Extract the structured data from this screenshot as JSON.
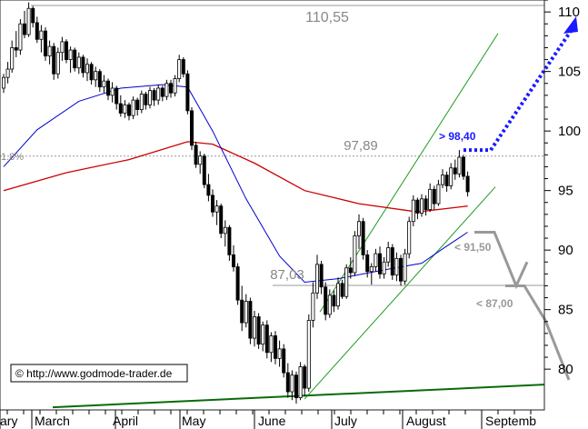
{
  "chart_data": {
    "type": "candlestick",
    "title": "",
    "xlabel": "",
    "ylabel": "",
    "months": [
      "ary",
      "March",
      "April",
      "May",
      "June",
      "July",
      "August",
      "Septemb"
    ],
    "y_ticks": [
      "110",
      "105",
      "100",
      "95",
      "90",
      "85",
      "80"
    ],
    "ylim": [
      76.5,
      110.8
    ],
    "price_labels": {
      "high": "110,55",
      "mid_high": "97,89",
      "support": "87,03",
      "fib_pct": "1.8%"
    },
    "target_labels": {
      "up_target": "> 98,40",
      "down_1": "< 91,50",
      "down_2": "< 87,00"
    },
    "copyright": "© http://www.godmode-trader.de",
    "series": [
      {
        "name": "",
        "color": "#cc0000",
        "kind": "moving-average-long"
      },
      {
        "name": "",
        "color": "#0000cc",
        "kind": "moving-average-short"
      }
    ],
    "candles": [
      [
        103.6,
        104.8,
        103.2,
        104.5
      ],
      [
        104.5,
        105.8,
        104.0,
        105.2
      ],
      [
        105.2,
        107.6,
        104.9,
        107.0
      ],
      [
        107.0,
        108.4,
        106.2,
        106.8
      ],
      [
        106.8,
        109.4,
        106.4,
        109.0
      ],
      [
        109.0,
        110.1,
        107.8,
        108.1
      ],
      [
        108.1,
        110.8,
        107.9,
        110.3
      ],
      [
        110.3,
        110.5,
        108.7,
        109.1
      ],
      [
        109.1,
        109.6,
        107.4,
        107.7
      ],
      [
        107.7,
        108.9,
        106.6,
        108.4
      ],
      [
        108.4,
        108.7,
        105.9,
        106.3
      ],
      [
        106.3,
        107.6,
        105.6,
        107.1
      ],
      [
        107.1,
        107.4,
        104.3,
        104.8
      ],
      [
        104.8,
        107.0,
        104.4,
        106.6
      ],
      [
        106.6,
        107.9,
        105.9,
        107.5
      ],
      [
        107.5,
        107.7,
        105.7,
        106.0
      ],
      [
        106.0,
        107.1,
        104.9,
        106.8
      ],
      [
        106.8,
        107.0,
        105.0,
        105.3
      ],
      [
        105.3,
        106.6,
        104.8,
        106.2
      ],
      [
        106.2,
        106.4,
        104.5,
        104.9
      ],
      [
        104.9,
        106.1,
        104.2,
        105.6
      ],
      [
        105.6,
        105.8,
        103.9,
        104.3
      ],
      [
        104.3,
        105.4,
        103.7,
        105.0
      ],
      [
        105.0,
        105.2,
        103.3,
        103.7
      ],
      [
        103.7,
        104.7,
        103.2,
        104.2
      ],
      [
        104.2,
        104.4,
        102.6,
        103.0
      ],
      [
        103.0,
        104.1,
        102.4,
        103.6
      ],
      [
        103.6,
        103.8,
        101.8,
        102.3
      ],
      [
        102.3,
        103.0,
        101.2,
        101.5
      ],
      [
        101.5,
        102.6,
        101.1,
        102.2
      ],
      [
        102.2,
        102.4,
        100.9,
        101.3
      ],
      [
        101.3,
        102.9,
        101.0,
        102.6
      ],
      [
        102.6,
        102.8,
        101.3,
        101.8
      ],
      [
        101.8,
        103.4,
        101.5,
        103.1
      ],
      [
        103.1,
        103.3,
        101.8,
        102.2
      ],
      [
        102.2,
        103.7,
        101.9,
        103.4
      ],
      [
        103.4,
        103.6,
        102.1,
        102.6
      ],
      [
        102.6,
        103.9,
        102.2,
        103.6
      ],
      [
        103.6,
        103.8,
        102.5,
        102.9
      ],
      [
        102.9,
        104.3,
        102.6,
        104.0
      ],
      [
        104.0,
        104.3,
        102.8,
        103.2
      ],
      [
        103.2,
        104.7,
        102.9,
        104.4
      ],
      [
        104.4,
        106.4,
        104.1,
        106.0
      ],
      [
        106.0,
        106.2,
        104.5,
        104.8
      ],
      [
        104.8,
        105.1,
        101.4,
        101.7
      ],
      [
        101.7,
        102.0,
        98.4,
        98.8
      ],
      [
        98.8,
        99.1,
        96.9,
        97.2
      ],
      [
        97.2,
        98.3,
        96.4,
        97.9
      ],
      [
        97.9,
        98.1,
        95.2,
        95.5
      ],
      [
        95.5,
        96.4,
        94.1,
        94.6
      ],
      [
        94.6,
        95.1,
        92.8,
        93.2
      ],
      [
        93.2,
        94.2,
        92.1,
        93.7
      ],
      [
        93.7,
        93.9,
        91.0,
        91.4
      ],
      [
        91.4,
        92.5,
        90.3,
        91.9
      ],
      [
        91.9,
        92.1,
        89.1,
        89.6
      ],
      [
        89.6,
        90.4,
        88.2,
        88.6
      ],
      [
        88.6,
        88.9,
        85.4,
        85.8
      ],
      [
        85.8,
        87.0,
        83.2,
        83.9
      ],
      [
        83.9,
        86.3,
        83.5,
        85.7
      ],
      [
        85.7,
        86.0,
        82.1,
        82.6
      ],
      [
        82.6,
        84.9,
        81.9,
        84.4
      ],
      [
        84.4,
        84.7,
        81.7,
        82.1
      ],
      [
        82.1,
        84.0,
        81.5,
        83.7
      ],
      [
        83.7,
        84.1,
        80.9,
        81.4
      ],
      [
        81.4,
        83.1,
        80.6,
        82.8
      ],
      [
        82.8,
        83.2,
        80.4,
        80.9
      ],
      [
        80.9,
        82.4,
        80.2,
        81.7
      ],
      [
        81.7,
        82.1,
        79.3,
        79.7
      ],
      [
        79.7,
        80.5,
        77.6,
        78.1
      ],
      [
        78.1,
        79.9,
        77.4,
        79.5
      ],
      [
        79.5,
        79.8,
        77.1,
        77.6
      ],
      [
        77.6,
        80.6,
        77.4,
        80.2
      ],
      [
        80.2,
        80.4,
        77.7,
        78.4
      ],
      [
        78.4,
        84.6,
        78.1,
        84.1
      ],
      [
        84.1,
        87.3,
        83.5,
        86.4
      ],
      [
        86.4,
        89.6,
        85.9,
        88.8
      ],
      [
        88.8,
        89.1,
        86.3,
        86.9
      ],
      [
        86.9,
        87.3,
        84.1,
        84.6
      ],
      [
        84.6,
        86.7,
        84.3,
        86.2
      ],
      [
        86.2,
        86.6,
        84.8,
        85.3
      ],
      [
        85.3,
        87.7,
        85.0,
        87.2
      ],
      [
        87.2,
        87.5,
        85.9,
        86.1
      ],
      [
        86.1,
        88.8,
        85.9,
        88.5
      ],
      [
        88.5,
        89.4,
        87.6,
        88.1
      ],
      [
        88.1,
        91.6,
        87.8,
        91.2
      ],
      [
        91.2,
        93.0,
        90.1,
        92.4
      ],
      [
        92.4,
        92.7,
        89.2,
        89.6
      ],
      [
        89.6,
        90.0,
        87.7,
        88.2
      ],
      [
        88.2,
        88.9,
        87.1,
        88.6
      ],
      [
        88.6,
        90.1,
        88.2,
        89.7
      ],
      [
        89.7,
        90.3,
        87.6,
        88.0
      ],
      [
        88.0,
        89.4,
        87.6,
        89.0
      ],
      [
        89.0,
        90.7,
        88.6,
        90.2
      ],
      [
        90.2,
        90.5,
        87.5,
        87.9
      ],
      [
        87.9,
        89.8,
        87.4,
        89.3
      ],
      [
        89.3,
        89.6,
        87.0,
        87.4
      ],
      [
        87.4,
        90.1,
        87.1,
        89.7
      ],
      [
        89.7,
        92.8,
        89.3,
        92.4
      ],
      [
        92.4,
        94.6,
        92.0,
        94.2
      ],
      [
        94.2,
        94.4,
        92.6,
        93.1
      ],
      [
        93.1,
        94.7,
        92.8,
        94.3
      ],
      [
        94.3,
        94.6,
        92.9,
        93.4
      ],
      [
        93.4,
        95.6,
        93.2,
        95.1
      ],
      [
        95.1,
        95.4,
        93.4,
        93.9
      ],
      [
        93.9,
        95.9,
        93.7,
        95.5
      ],
      [
        95.5,
        96.8,
        95.2,
        96.3
      ],
      [
        96.3,
        96.6,
        94.9,
        95.4
      ],
      [
        95.4,
        97.3,
        95.1,
        96.9
      ],
      [
        96.9,
        97.6,
        95.9,
        96.4
      ],
      [
        96.4,
        98.4,
        96.1,
        97.8
      ],
      [
        97.8,
        98.0,
        95.9,
        96.2
      ],
      [
        96.2,
        96.6,
        94.5,
        94.9
      ]
    ],
    "ma_long": [
      [
        0,
        95.0
      ],
      [
        15,
        96.5
      ],
      [
        30,
        97.6
      ],
      [
        44,
        99.1
      ],
      [
        50,
        98.9
      ],
      [
        60,
        97.3
      ],
      [
        72,
        95.0
      ],
      [
        85,
        93.9
      ],
      [
        99,
        93.2
      ],
      [
        111,
        93.7
      ]
    ],
    "ma_short": [
      [
        0,
        97.0
      ],
      [
        8,
        100.1
      ],
      [
        18,
        102.5
      ],
      [
        28,
        103.6
      ],
      [
        38,
        103.9
      ],
      [
        44,
        103.7
      ],
      [
        50,
        100.0
      ],
      [
        58,
        94.3
      ],
      [
        66,
        89.5
      ],
      [
        72,
        87.3
      ],
      [
        80,
        87.6
      ],
      [
        92,
        88.4
      ],
      [
        100,
        88.9
      ],
      [
        105,
        90.1
      ],
      [
        111,
        91.5
      ]
    ]
  }
}
